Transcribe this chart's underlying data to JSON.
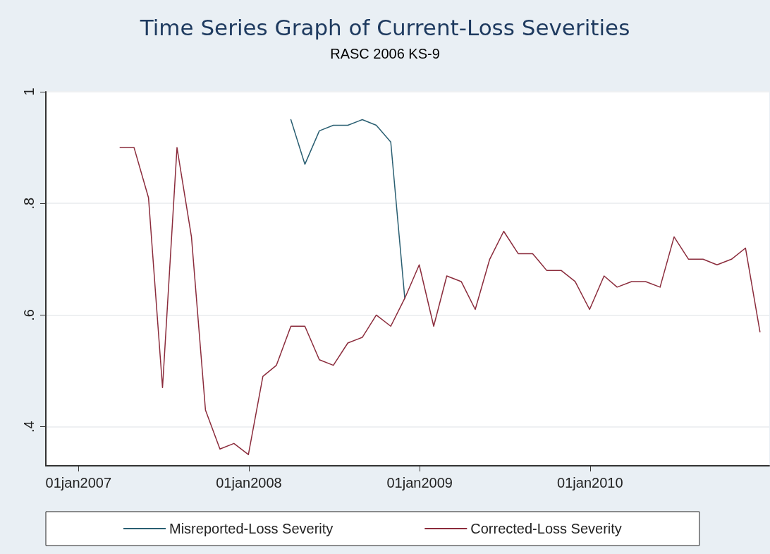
{
  "chart_data": {
    "type": "line",
    "title": "Time Series Graph of Current-Loss Severities",
    "subtitle": "RASC 2006 KS-9",
    "x": [
      "2007-03-31",
      "2007-04-30",
      "2007-05-31",
      "2007-06-30",
      "2007-07-31",
      "2007-08-31",
      "2007-09-30",
      "2007-10-31",
      "2007-11-30",
      "2007-12-31",
      "2008-01-31",
      "2008-02-29",
      "2008-03-31",
      "2008-04-30",
      "2008-05-31",
      "2008-06-30",
      "2008-07-31",
      "2008-08-31",
      "2008-09-30",
      "2008-10-31",
      "2008-11-30",
      "2008-12-31",
      "2009-01-31",
      "2009-02-28",
      "2009-03-31",
      "2009-04-30",
      "2009-05-31",
      "2009-06-30",
      "2009-07-31",
      "2009-08-31",
      "2009-09-30",
      "2009-10-31",
      "2009-11-30",
      "2009-12-31",
      "2010-01-31",
      "2010-02-28",
      "2010-03-31",
      "2010-04-30",
      "2010-05-31",
      "2010-06-30",
      "2010-07-31",
      "2010-08-31",
      "2010-09-30",
      "2010-10-31",
      "2010-11-30",
      "2010-12-31"
    ],
    "series": [
      {
        "name": "Misreported-Loss Severity",
        "color": "#2a5f72",
        "values": [
          null,
          null,
          null,
          null,
          null,
          null,
          null,
          null,
          null,
          null,
          null,
          null,
          0.95,
          0.87,
          0.93,
          0.94,
          0.94,
          0.95,
          0.94,
          0.91,
          0.63,
          null,
          null,
          null,
          null,
          null,
          null,
          null,
          null,
          null,
          null,
          null,
          null,
          null,
          null,
          null,
          null,
          null,
          null,
          null,
          null,
          null,
          null,
          null,
          null,
          null
        ]
      },
      {
        "name": "Corrected-Loss Severity",
        "color": "#8b2c3c",
        "values": [
          0.9,
          0.9,
          0.81,
          0.47,
          0.9,
          0.74,
          0.43,
          0.36,
          0.37,
          0.35,
          0.49,
          0.51,
          0.58,
          0.58,
          0.52,
          0.51,
          0.55,
          0.56,
          0.6,
          0.58,
          0.63,
          0.69,
          0.58,
          0.67,
          0.66,
          0.61,
          0.7,
          0.75,
          0.71,
          0.71,
          0.68,
          0.68,
          0.66,
          0.61,
          0.67,
          0.65,
          0.66,
          0.66,
          0.65,
          0.74,
          0.7,
          0.7,
          0.69,
          0.7,
          0.72,
          0.57
        ]
      }
    ],
    "xlim": [
      "2006-10-23",
      "2011-01-20"
    ],
    "xticks": [
      {
        "value": "2007-01-01",
        "label": "01jan2007"
      },
      {
        "value": "2008-01-01",
        "label": "01jan2008"
      },
      {
        "value": "2009-01-01",
        "label": "01jan2009"
      },
      {
        "value": "2010-01-01",
        "label": "01jan2010"
      }
    ],
    "ylim": [
      0.33,
      1
    ],
    "yticks": [
      {
        "value": 0.4,
        "label": ".4"
      },
      {
        "value": 0.6,
        "label": ".6"
      },
      {
        "value": 0.8,
        "label": ".8"
      },
      1
    ],
    "grid": "y",
    "legend": "bottom",
    "marker": "none",
    "line_style": "solid"
  }
}
